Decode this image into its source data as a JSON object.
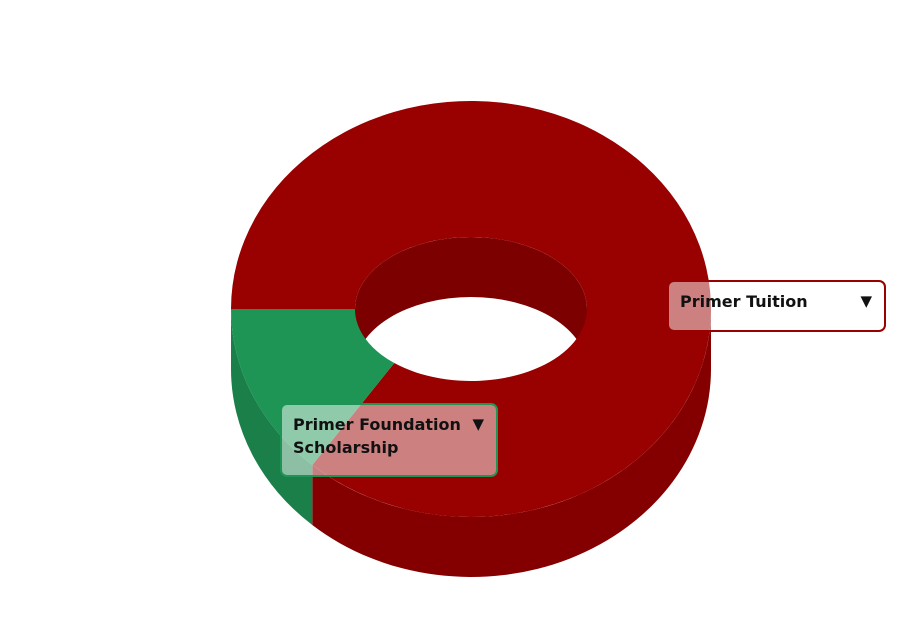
{
  "chart_data": {
    "type": "pie",
    "style": "3d-donut",
    "title": "",
    "slices": [
      {
        "label": "Primer Tuition",
        "value": 86.5,
        "color": "#990000"
      },
      {
        "label": "Primer Foundation Scholarship",
        "value": 13.5,
        "color": "#1e9455"
      }
    ],
    "legend": "none",
    "tooltip_caret": "▼",
    "tooltips": [
      {
        "text": "Primer Tuition",
        "border_color": "#990000"
      },
      {
        "text": "Primer Foundation\nScholarship",
        "border_color": "#1e9455"
      }
    ]
  }
}
